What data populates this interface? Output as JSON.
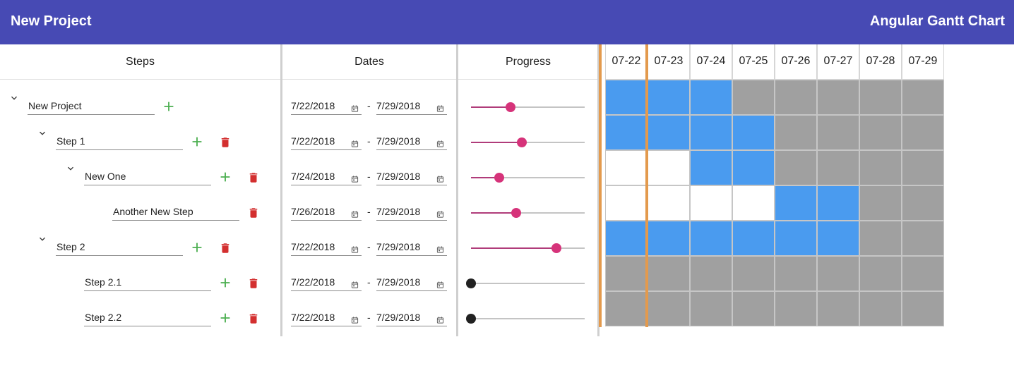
{
  "header": {
    "title": "New Project",
    "app_name": "Angular Gantt Chart"
  },
  "columns": {
    "steps": "Steps",
    "dates": "Dates",
    "progress": "Progress"
  },
  "gantt": {
    "dates": [
      "07-22",
      "07-23",
      "07-24",
      "07-25",
      "07-26",
      "07-27",
      "07-28",
      "07-29"
    ],
    "today_index": 0
  },
  "date_separator": "-",
  "colors": {
    "toolbar": "#474ab4",
    "active": "#4a9bef",
    "inactive": "#a0a0a0",
    "today": "#e39a4d",
    "add": "#4caf50",
    "delete": "#d32f2f",
    "slider": "#d6337a"
  },
  "rows": [
    {
      "name": "New Project",
      "level": 0,
      "expandable": true,
      "can_delete": false,
      "start": "7/22/2018",
      "end": "7/29/2018",
      "progress": 0.35,
      "cells": [
        "active",
        "active",
        "active",
        "off",
        "off",
        "off",
        "off",
        "off"
      ]
    },
    {
      "name": "Step 1",
      "level": 1,
      "expandable": true,
      "can_delete": true,
      "start": "7/22/2018",
      "end": "7/29/2018",
      "progress": 0.45,
      "cells": [
        "active",
        "active",
        "active",
        "active",
        "off",
        "off",
        "off",
        "off"
      ]
    },
    {
      "name": "New One",
      "level": 2,
      "expandable": true,
      "can_delete": true,
      "start": "7/24/2018",
      "end": "7/29/2018",
      "progress": 0.25,
      "cells": [
        "empty",
        "empty",
        "active",
        "active",
        "off",
        "off",
        "off",
        "off"
      ]
    },
    {
      "name": "Another New Step",
      "level": 3,
      "expandable": false,
      "can_delete": true,
      "can_add": false,
      "start": "7/26/2018",
      "end": "7/29/2018",
      "progress": 0.4,
      "cells": [
        "empty",
        "empty",
        "empty",
        "empty",
        "active",
        "active",
        "off",
        "off"
      ]
    },
    {
      "name": "Step 2",
      "level": 1,
      "expandable": true,
      "can_delete": true,
      "start": "7/22/2018",
      "end": "7/29/2018",
      "progress": 0.75,
      "cells": [
        "active",
        "active",
        "active",
        "active",
        "active",
        "active",
        "off",
        "off"
      ]
    },
    {
      "name": "Step 2.1",
      "level": 2,
      "expandable": false,
      "can_delete": true,
      "start": "7/22/2018",
      "end": "7/29/2018",
      "progress": 0,
      "cells": [
        "off",
        "off",
        "off",
        "off",
        "off",
        "off",
        "off",
        "off"
      ]
    },
    {
      "name": "Step 2.2",
      "level": 2,
      "expandable": false,
      "can_delete": true,
      "start": "7/22/2018",
      "end": "7/29/2018",
      "progress": 0,
      "cells": [
        "off",
        "off",
        "off",
        "off",
        "off",
        "off",
        "off",
        "off"
      ]
    }
  ]
}
